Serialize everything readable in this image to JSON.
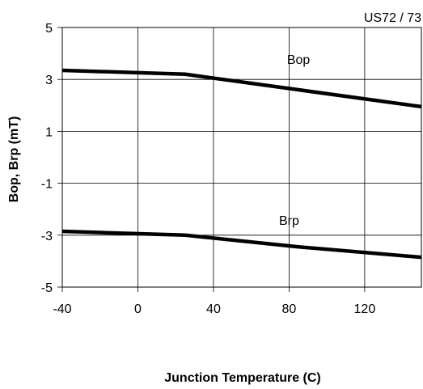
{
  "chart_data": {
    "type": "line",
    "title": "US72 / 73",
    "xlabel": "Junction Temperature (C)",
    "ylabel": "Bop, Brp  (mT)",
    "xlim": [
      -40,
      150
    ],
    "ylim": [
      -5,
      5
    ],
    "x_ticks": [
      -40,
      0,
      40,
      80,
      120
    ],
    "y_ticks": [
      5,
      3,
      1,
      -1,
      -3,
      -5
    ],
    "grid": true,
    "series": [
      {
        "name": "Bop",
        "x": [
          -40,
          25,
          85,
          150
        ],
        "y": [
          3.35,
          3.2,
          2.6,
          1.95
        ]
      },
      {
        "name": "Brp",
        "x": [
          -40,
          25,
          85,
          150
        ],
        "y": [
          -2.85,
          -3.0,
          -3.45,
          -3.85
        ]
      }
    ]
  }
}
